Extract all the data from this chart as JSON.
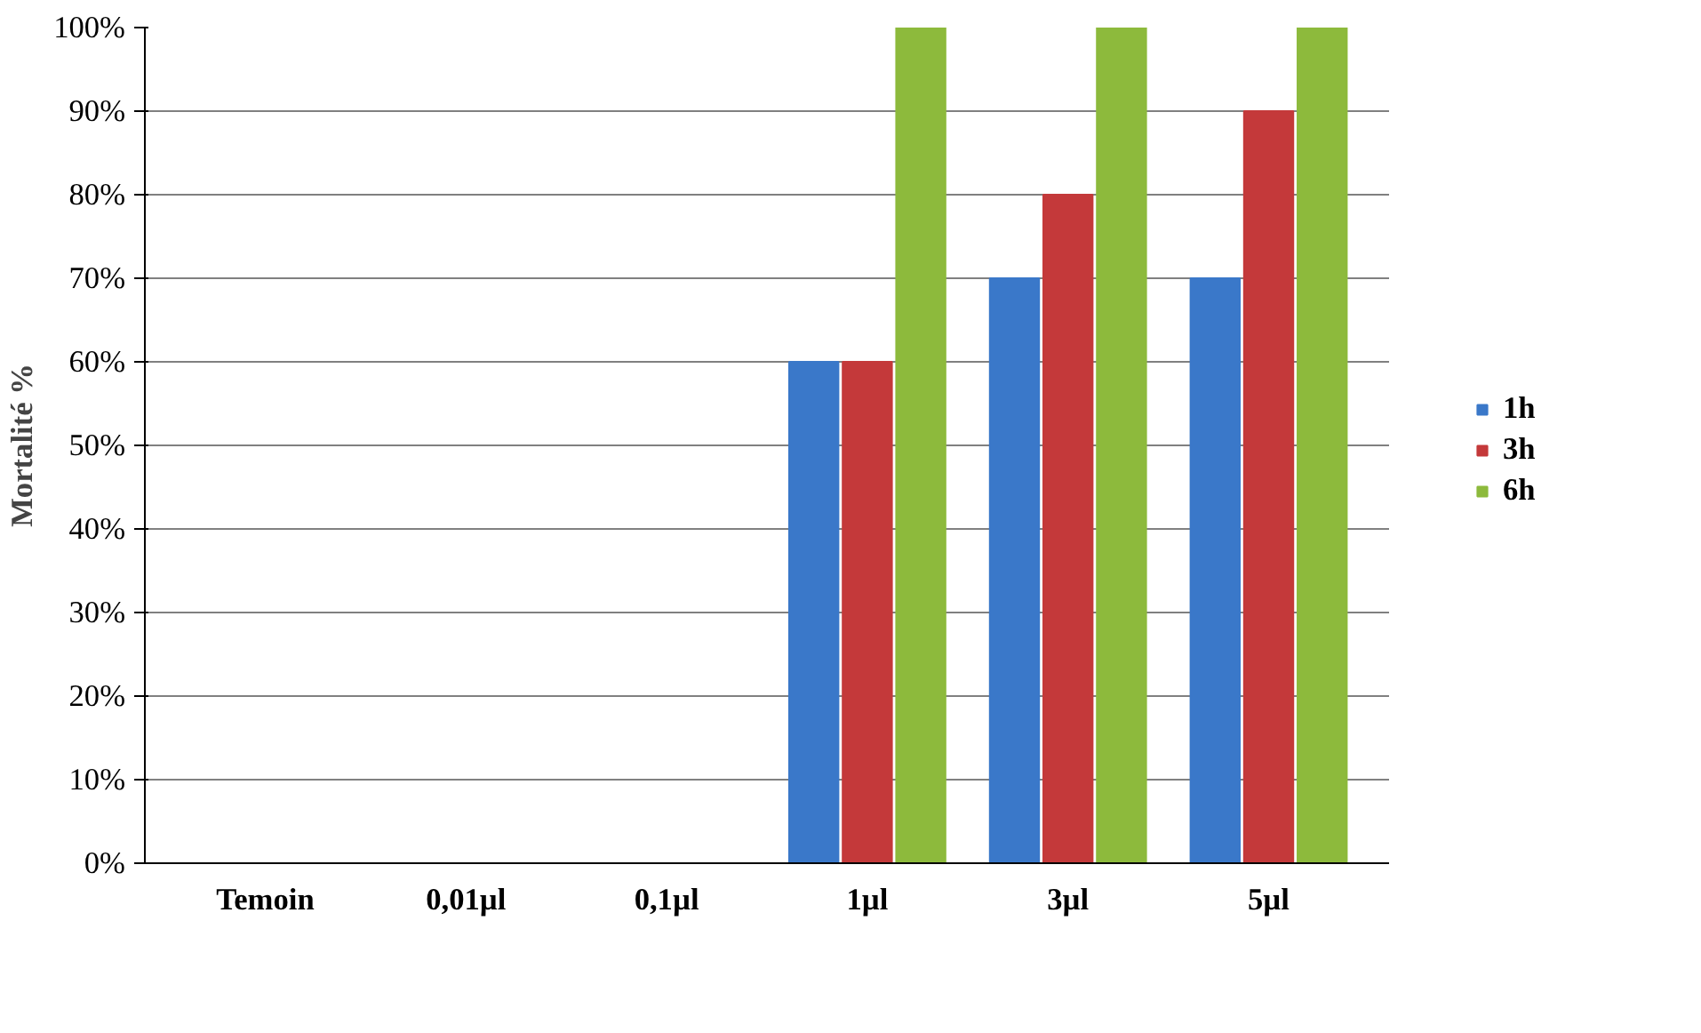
{
  "chart_data": {
    "type": "bar",
    "ylabel": "Mortalité %",
    "categories": [
      "Temoin",
      "0,01µl",
      "0,1µl",
      "1µl",
      "3µl",
      "5µl"
    ],
    "series": [
      {
        "name": "1h",
        "color": "#3a78c9",
        "values": [
          0,
          0,
          0,
          60,
          70,
          70
        ]
      },
      {
        "name": "3h",
        "color": "#c4393a",
        "values": [
          0,
          0,
          0,
          60,
          80,
          90
        ]
      },
      {
        "name": "6h",
        "color": "#8dba3c",
        "values": [
          0,
          0,
          0,
          100,
          100,
          100
        ]
      }
    ],
    "ylim": [
      0,
      100
    ],
    "yticks": [
      {
        "value": 0,
        "label": "0%"
      },
      {
        "value": 10,
        "label": "10%"
      },
      {
        "value": 20,
        "label": "20%"
      },
      {
        "value": 30,
        "label": "30%"
      },
      {
        "value": 40,
        "label": "40%"
      },
      {
        "value": 50,
        "label": "50%"
      },
      {
        "value": 60,
        "label": "60%"
      },
      {
        "value": 70,
        "label": "70%"
      },
      {
        "value": 80,
        "label": "80%"
      },
      {
        "value": 90,
        "label": "90%"
      },
      {
        "value": 100,
        "label": "100%"
      }
    ],
    "grid": "y",
    "legend": "right"
  }
}
